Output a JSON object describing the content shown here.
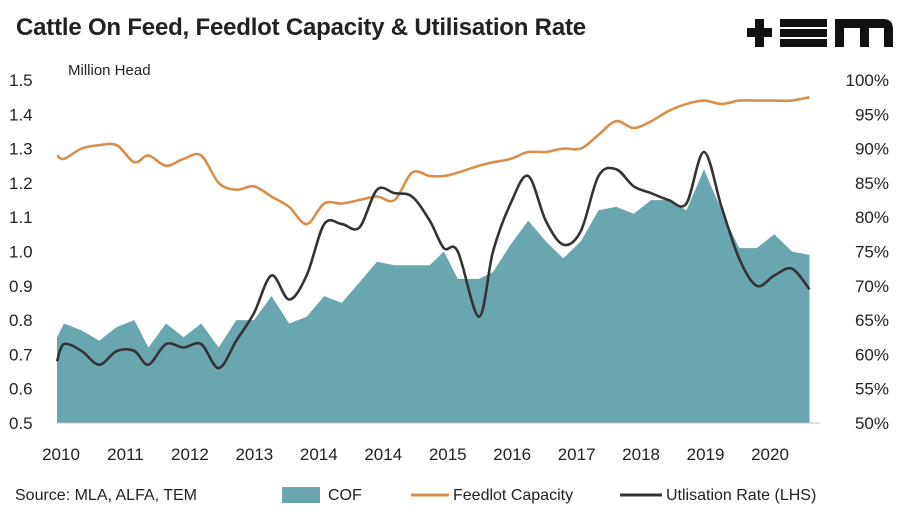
{
  "title": "Cattle On Feed, Feedlot Capacity & Utilisation Rate",
  "logo": "+EM",
  "source": "Source: MLA, ALFA, TEM",
  "colors": {
    "cof": "#6aa6b0",
    "capacity": "#d88f4c",
    "utilisation": "#333333"
  },
  "chart_data": {
    "type": "area",
    "unit_label": "Million Head",
    "y_left": {
      "ticks": [
        "0.5",
        "0.6",
        "0.7",
        "0.8",
        "0.9",
        "1.0",
        "1.1",
        "1.2",
        "1.3",
        "1.4",
        "1.5"
      ],
      "range": [
        0.5,
        1.5
      ]
    },
    "y_right": {
      "ticks": [
        "50%",
        "55%",
        "60%",
        "65%",
        "70%",
        "75%",
        "80%",
        "85%",
        "90%",
        "95%",
        "100%"
      ],
      "range": [
        50,
        100
      ]
    },
    "x_ticks": [
      "2010",
      "2011",
      "2012",
      "2013",
      "2014",
      "2014",
      "2015",
      "2016",
      "2017",
      "2018",
      "2019",
      "2020"
    ],
    "x_range": [
      2010.0,
      2020.85
    ],
    "legend": [
      "COF",
      "Feedlot Capacity",
      "Utlisation Rate (LHS)"
    ],
    "series": [
      {
        "name": "COF",
        "kind": "area",
        "axis": "left",
        "x": [
          2010.0,
          2010.1,
          2010.35,
          2010.6,
          2010.85,
          2011.1,
          2011.3,
          2011.55,
          2011.8,
          2012.05,
          2012.3,
          2012.55,
          2012.8,
          2013.05,
          2013.3,
          2013.55,
          2013.8,
          2014.05,
          2014.3,
          2014.55,
          2014.8,
          2015.05,
          2015.3,
          2015.5,
          2015.7,
          2016.0,
          2016.2,
          2016.45,
          2016.7,
          2016.95,
          2017.2,
          2017.45,
          2017.7,
          2017.95,
          2018.2,
          2018.45,
          2018.7,
          2018.95,
          2019.2,
          2019.45,
          2019.7,
          2019.95,
          2020.2,
          2020.45,
          2020.7
        ],
        "values": [
          0.75,
          0.79,
          0.77,
          0.74,
          0.78,
          0.8,
          0.72,
          0.79,
          0.75,
          0.79,
          0.72,
          0.8,
          0.8,
          0.87,
          0.79,
          0.81,
          0.87,
          0.85,
          0.91,
          0.97,
          0.96,
          0.96,
          0.96,
          1.0,
          0.92,
          0.92,
          0.94,
          1.02,
          1.09,
          1.03,
          0.98,
          1.03,
          1.12,
          1.13,
          1.11,
          1.15,
          1.15,
          1.12,
          1.24,
          1.12,
          1.01,
          1.01,
          1.05,
          1.0,
          0.99
        ]
      },
      {
        "name": "Feedlot Capacity",
        "kind": "line",
        "axis": "right",
        "x": [
          2010.0,
          2010.1,
          2010.35,
          2010.6,
          2010.85,
          2011.1,
          2011.3,
          2011.55,
          2011.8,
          2012.05,
          2012.3,
          2012.55,
          2012.8,
          2013.05,
          2013.3,
          2013.55,
          2013.8,
          2014.05,
          2014.3,
          2014.55,
          2014.8,
          2015.05,
          2015.3,
          2015.5,
          2015.7,
          2016.0,
          2016.2,
          2016.45,
          2016.7,
          2016.95,
          2017.2,
          2017.45,
          2017.7,
          2017.95,
          2018.2,
          2018.45,
          2018.7,
          2018.95,
          2019.2,
          2019.45,
          2019.7,
          2019.95,
          2020.2,
          2020.45,
          2020.7
        ],
        "values": [
          89.0,
          88.5,
          90.0,
          90.5,
          90.5,
          88.0,
          89.0,
          87.5,
          88.5,
          89.0,
          85.0,
          84.0,
          84.5,
          83.0,
          81.5,
          79.0,
          82.0,
          82.0,
          82.5,
          83.0,
          82.5,
          86.5,
          86.0,
          86.0,
          86.5,
          87.5,
          88.0,
          88.5,
          89.5,
          89.5,
          90.0,
          90.0,
          92.0,
          94.0,
          93.0,
          94.0,
          95.5,
          96.5,
          97.0,
          96.5,
          97.0,
          97.0,
          97.0,
          97.0,
          97.5
        ]
      },
      {
        "name": "Utlisation Rate (LHS)",
        "kind": "line",
        "axis": "left",
        "x": [
          2010.0,
          2010.1,
          2010.35,
          2010.6,
          2010.85,
          2011.1,
          2011.3,
          2011.55,
          2011.8,
          2012.05,
          2012.3,
          2012.55,
          2012.8,
          2013.05,
          2013.3,
          2013.55,
          2013.8,
          2014.05,
          2014.3,
          2014.55,
          2014.8,
          2015.05,
          2015.3,
          2015.5,
          2015.7,
          2016.0,
          2016.2,
          2016.45,
          2016.7,
          2016.95,
          2017.2,
          2017.45,
          2017.7,
          2017.95,
          2018.2,
          2018.45,
          2018.7,
          2018.95,
          2019.2,
          2019.45,
          2019.7,
          2019.95,
          2020.2,
          2020.45,
          2020.7
        ],
        "values": [
          0.68,
          0.73,
          0.71,
          0.67,
          0.71,
          0.71,
          0.67,
          0.73,
          0.72,
          0.73,
          0.66,
          0.74,
          0.82,
          0.93,
          0.86,
          0.93,
          1.08,
          1.08,
          1.07,
          1.18,
          1.17,
          1.16,
          1.09,
          1.01,
          1.0,
          0.81,
          1.0,
          1.14,
          1.22,
          1.09,
          1.02,
          1.06,
          1.22,
          1.24,
          1.19,
          1.17,
          1.15,
          1.14,
          1.29,
          1.13,
          0.98,
          0.9,
          0.93,
          0.95,
          0.89
        ]
      }
    ]
  }
}
